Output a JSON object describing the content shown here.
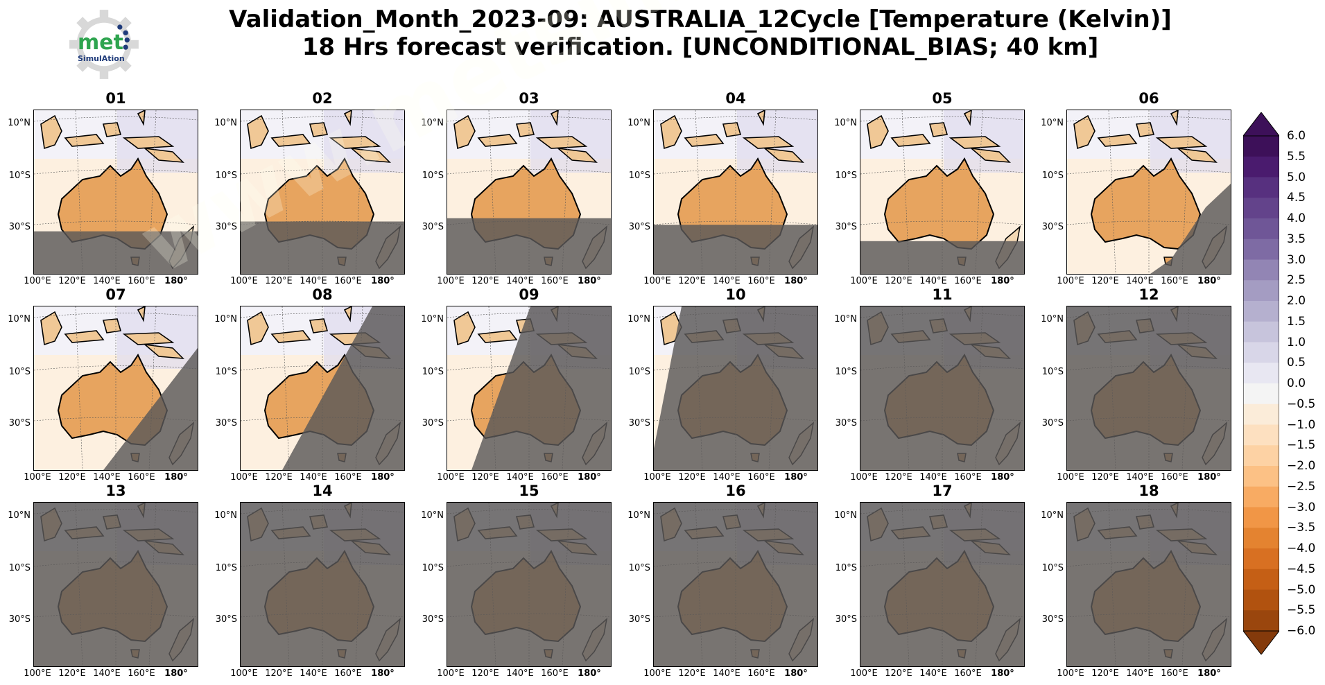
{
  "title_line1": "Validation_Month_2023-09: AUSTRALIA_12Cycle [Temperature (Kelvin)]",
  "title_line2": "18 Hrs forecast verification. [UNCONDITIONAL_BIAS; 40 km]",
  "logo": {
    "text": "met",
    "subtext": "SimulAtion"
  },
  "watermark": "www.metsimulation.com",
  "lat_ticks": [
    "10°N",
    "10°S",
    "30°S"
  ],
  "lon_ticks": [
    "100°E",
    "120°E",
    "140°E",
    "160°E",
    "180°"
  ],
  "panels": [
    {
      "label": "01",
      "mask_angle": 0,
      "mask_top": 0.74
    },
    {
      "label": "02",
      "mask_angle": 0,
      "mask_top": 0.68
    },
    {
      "label": "03",
      "mask_angle": 0,
      "mask_top": 0.66
    },
    {
      "label": "04",
      "mask_angle": 0,
      "mask_top": 0.7
    },
    {
      "label": "05",
      "mask_angle": 0,
      "mask_top": 0.8
    },
    {
      "label": "06",
      "mask_angle": 1,
      "mask_top": 0.9
    },
    {
      "label": "07",
      "mask_angle": 2,
      "mask_top": 0
    },
    {
      "label": "08",
      "mask_angle": 3,
      "mask_top": 0
    },
    {
      "label": "09",
      "mask_angle": 4,
      "mask_top": 0
    },
    {
      "label": "10",
      "mask_angle": 5,
      "mask_top": 0
    },
    {
      "label": "11",
      "mask_angle": 6,
      "mask_top": 0
    },
    {
      "label": "12",
      "mask_angle": 6,
      "mask_top": 0
    },
    {
      "label": "13",
      "mask_angle": 6,
      "mask_top": 0
    },
    {
      "label": "14",
      "mask_angle": 6,
      "mask_top": 0
    },
    {
      "label": "15",
      "mask_angle": 6,
      "mask_top": 0
    },
    {
      "label": "16",
      "mask_angle": 6,
      "mask_top": 0
    },
    {
      "label": "17",
      "mask_angle": 6,
      "mask_top": 0
    },
    {
      "label": "18",
      "mask_angle": 6,
      "mask_top": 0
    }
  ],
  "colorbar": {
    "levels": [
      "6.0",
      "5.5",
      "5.0",
      "4.5",
      "4.0",
      "3.5",
      "3.0",
      "2.5",
      "2.0",
      "1.5",
      "1.0",
      "0.5",
      "0.0",
      "−0.5",
      "−1.0",
      "−1.5",
      "−2.0",
      "−2.5",
      "−3.0",
      "−3.5",
      "−4.0",
      "−4.5",
      "−5.0",
      "−5.5",
      "−6.0"
    ],
    "colors": [
      "#3d1059",
      "#4a1b6e",
      "#57307f",
      "#63438b",
      "#6f5697",
      "#7e6ba4",
      "#9285b4",
      "#a49cc2",
      "#b5b0cf",
      "#c7c4dc",
      "#d8d6e8",
      "#e8e7f2",
      "#f4f4f4",
      "#fbecd9",
      "#fde0c0",
      "#fdd2a4",
      "#fcc185",
      "#f8ab63",
      "#f19646",
      "#e48330",
      "#d87022",
      "#c55f15",
      "#b1520f",
      "#9a460d",
      "#843a0b"
    ]
  }
}
